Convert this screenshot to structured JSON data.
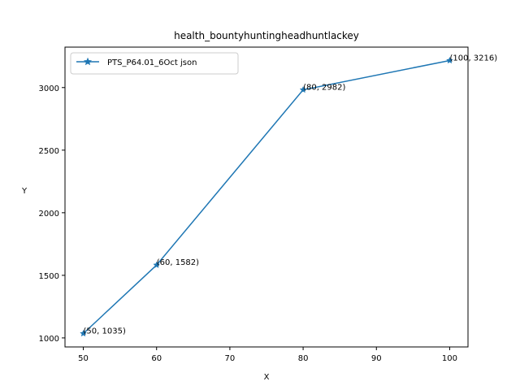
{
  "chart_data": {
    "type": "line",
    "title": "health_bountyhuntingheadhuntlackey",
    "xlabel": "X",
    "ylabel": "Y",
    "xlim": [
      47.5,
      102.5
    ],
    "ylim": [
      927.95,
      3323.05
    ],
    "xticks": [
      50,
      60,
      70,
      80,
      90,
      100
    ],
    "yticks": [
      1000,
      1500,
      2000,
      2500,
      3000
    ],
    "grid": false,
    "legend_position": "top-left",
    "series": [
      {
        "name": "PTS_P64.01_6Oct json",
        "color": "#1f77b4",
        "marker": "star",
        "x": [
          50,
          60,
          80,
          100
        ],
        "y": [
          1035,
          1582,
          2982,
          3216
        ]
      }
    ],
    "annotations": [
      "(50, 1035)",
      "(60, 1582)",
      "(80, 2982)",
      "(100, 3216)"
    ]
  }
}
